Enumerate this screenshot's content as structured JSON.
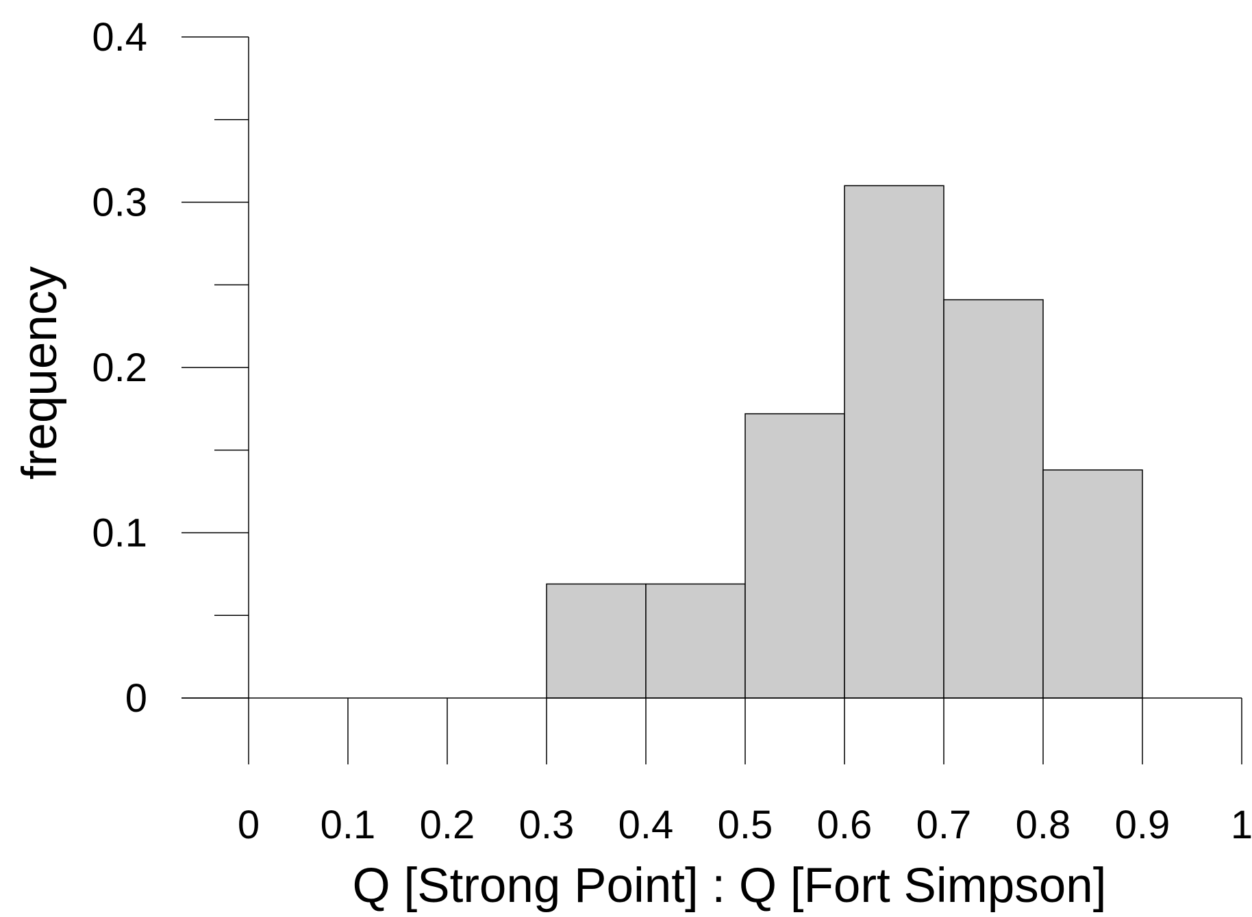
{
  "chart_data": {
    "type": "bar",
    "histogram": true,
    "bin_edges": [
      0,
      0.1,
      0.2,
      0.3,
      0.4,
      0.5,
      0.6,
      0.7,
      0.8,
      0.9,
      1
    ],
    "values": [
      0,
      0,
      0,
      0.069,
      0.069,
      0.172,
      0.31,
      0.241,
      0.138,
      0
    ],
    "xlabel": "Q [Strong Point] : Q [Fort Simpson]",
    "ylabel": "frequency",
    "xlim": [
      0,
      1
    ],
    "ylim": [
      0,
      0.4
    ],
    "x_ticks": [
      "0",
      "0.1",
      "0.2",
      "0.3",
      "0.4",
      "0.5",
      "0.6",
      "0.7",
      "0.8",
      "0.9",
      "1"
    ],
    "y_ticks": [
      "0",
      "0.1",
      "0.2",
      "0.3",
      "0.4"
    ],
    "y_minor_ticks": [
      0.05,
      0.15,
      0.25,
      0.35
    ],
    "grid": false,
    "bar_color": "#cccccc",
    "line_color": "#000000"
  }
}
